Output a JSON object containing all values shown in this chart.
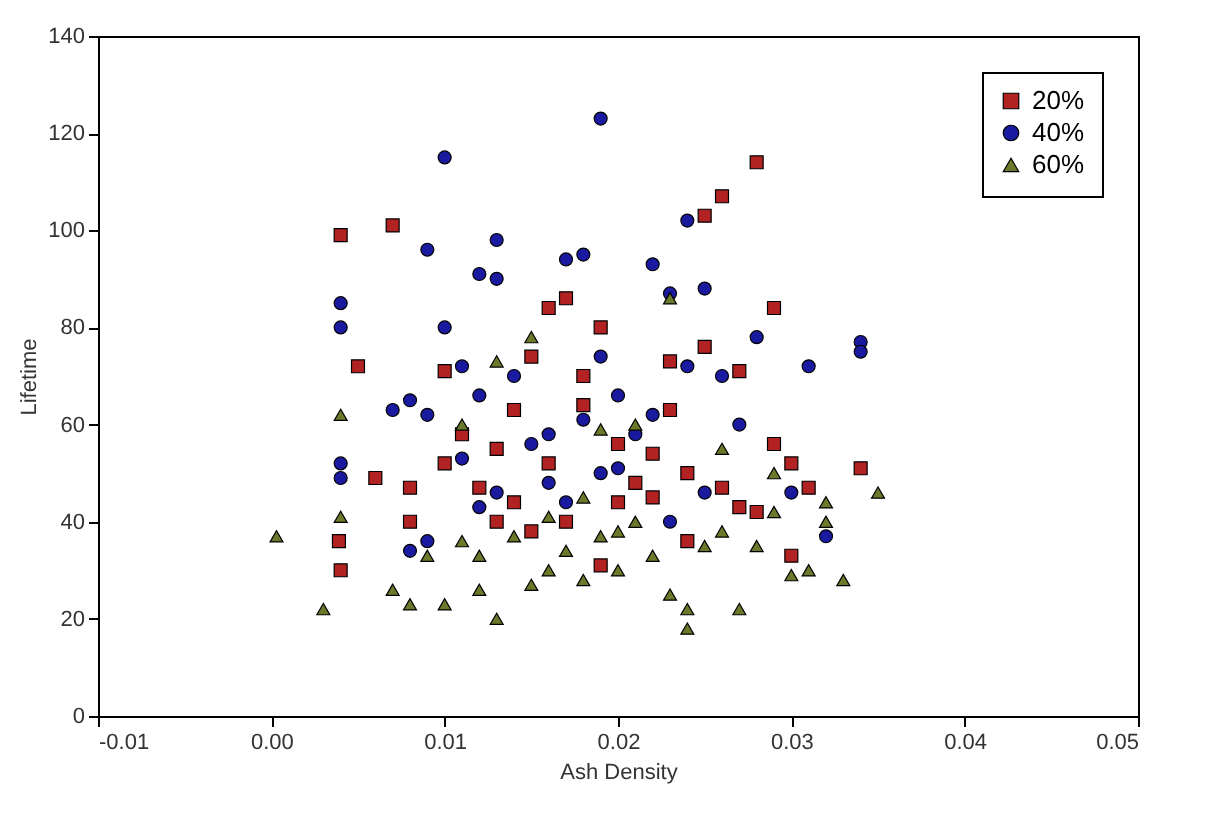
{
  "chart_data": {
    "type": "scatter",
    "xlabel": "Ash Density",
    "ylabel": "Lifetime",
    "xlim": [
      -0.01,
      0.05
    ],
    "ylim": [
      0,
      140
    ],
    "xticks": [
      {
        "value": -0.01,
        "label": "-0.01"
      },
      {
        "value": 0,
        "label": "0.00"
      },
      {
        "value": 0.01,
        "label": "0.01"
      },
      {
        "value": 0.02,
        "label": "0.02"
      },
      {
        "value": 0.03,
        "label": "0.03"
      },
      {
        "value": 0.04,
        "label": "0.04"
      },
      {
        "value": 0.05,
        "label": "0.05"
      }
    ],
    "yticks": [
      0,
      20,
      40,
      60,
      80,
      100,
      120,
      140
    ],
    "grid": false,
    "legend": "top right",
    "series": [
      {
        "name": "20%",
        "color": "#b22222",
        "marker": "square",
        "x": [
          0.004,
          0.007,
          0.0039,
          0.004,
          0.005,
          0.008,
          0.008,
          0.01,
          0.011,
          0.01,
          0.013,
          0.014,
          0.015,
          0.016,
          0.017,
          0.018,
          0.019,
          0.02,
          0.021,
          0.022,
          0.023,
          0.024,
          0.025,
          0.026,
          0.028,
          0.025,
          0.027,
          0.029,
          0.029,
          0.03,
          0.031,
          0.03,
          0.034,
          0.028,
          0.022,
          0.016,
          0.015,
          0.013,
          0.017,
          0.02,
          0.026,
          0.027,
          0.024,
          0.019,
          0.012,
          0.006,
          0.018,
          0.023,
          0.014
        ],
        "values": [
          99,
          101,
          36,
          30,
          72,
          47,
          40,
          71,
          58,
          52,
          55,
          44,
          74,
          84,
          86,
          64,
          80,
          56,
          48,
          45,
          63,
          50,
          103,
          107,
          114,
          76,
          71,
          84,
          56,
          52,
          47,
          33,
          51,
          42,
          54,
          52,
          38,
          40,
          40,
          44,
          47,
          43,
          36,
          31,
          47,
          49,
          70,
          73,
          63
        ]
      },
      {
        "name": "40%",
        "color": "#1a1aa0",
        "marker": "circle",
        "x": [
          0.01,
          0.019,
          0.009,
          0.013,
          0.004,
          0.004,
          0.004,
          0.004,
          0.012,
          0.013,
          0.017,
          0.018,
          0.024,
          0.022,
          0.023,
          0.025,
          0.019,
          0.02,
          0.01,
          0.011,
          0.008,
          0.007,
          0.009,
          0.012,
          0.014,
          0.016,
          0.011,
          0.013,
          0.015,
          0.018,
          0.021,
          0.022,
          0.024,
          0.026,
          0.028,
          0.031,
          0.034,
          0.034,
          0.027,
          0.03,
          0.032,
          0.025,
          0.02,
          0.017,
          0.023,
          0.009,
          0.008,
          0.012,
          0.019,
          0.016
        ],
        "values": [
          115,
          123,
          96,
          98,
          85,
          80,
          52,
          49,
          91,
          90,
          94,
          95,
          102,
          93,
          87,
          88,
          74,
          66,
          80,
          72,
          65,
          63,
          62,
          66,
          70,
          58,
          53,
          46,
          56,
          61,
          58,
          62,
          72,
          70,
          78,
          72,
          77,
          75,
          60,
          46,
          37,
          46,
          51,
          44,
          40,
          36,
          34,
          43,
          50,
          48
        ]
      },
      {
        "name": "60%",
        "color": "#6b7a2a",
        "marker": "triangle",
        "x": [
          0.0003,
          0.003,
          0.004,
          0.004,
          0.007,
          0.008,
          0.009,
          0.01,
          0.011,
          0.012,
          0.013,
          0.014,
          0.015,
          0.016,
          0.017,
          0.018,
          0.019,
          0.02,
          0.021,
          0.022,
          0.023,
          0.024,
          0.024,
          0.025,
          0.026,
          0.027,
          0.028,
          0.029,
          0.03,
          0.031,
          0.032,
          0.033,
          0.035,
          0.032,
          0.029,
          0.021,
          0.015,
          0.013,
          0.011,
          0.018,
          0.023,
          0.02,
          0.016,
          0.012,
          0.026,
          0.019
        ],
        "values": [
          37,
          22,
          62,
          41,
          26,
          23,
          33,
          23,
          36,
          26,
          20,
          37,
          27,
          30,
          34,
          28,
          37,
          30,
          40,
          33,
          25,
          18,
          22,
          35,
          38,
          22,
          35,
          42,
          29,
          30,
          40,
          28,
          46,
          44,
          50,
          60,
          78,
          73,
          60,
          45,
          86,
          38,
          41,
          33,
          55,
          59
        ]
      }
    ]
  }
}
